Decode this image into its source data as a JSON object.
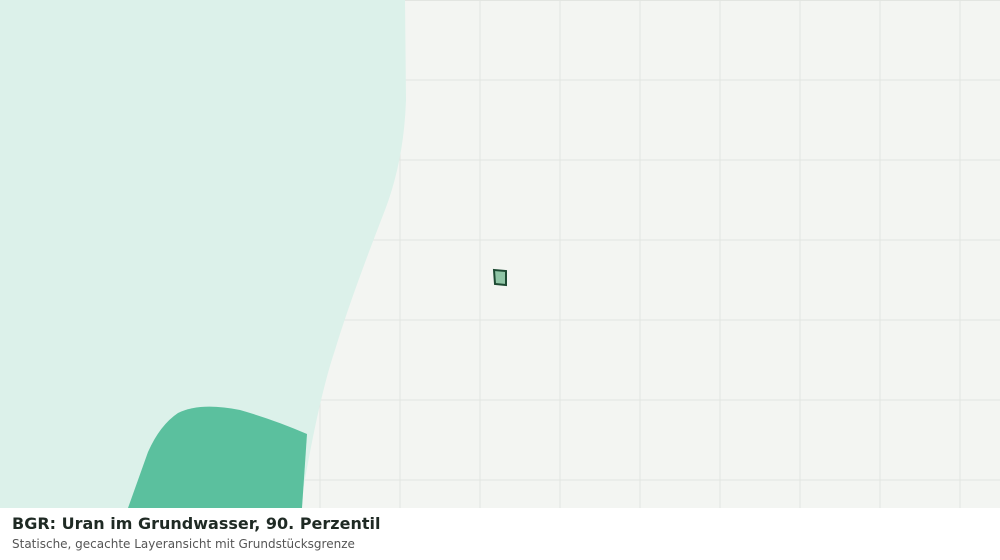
{
  "header": {
    "title": "BGR: Uran im Grundwasser, 90. Perzentil",
    "subtitle": "Statische, gecachte Layeransicht mit Grundstücksgrenze"
  }
}
